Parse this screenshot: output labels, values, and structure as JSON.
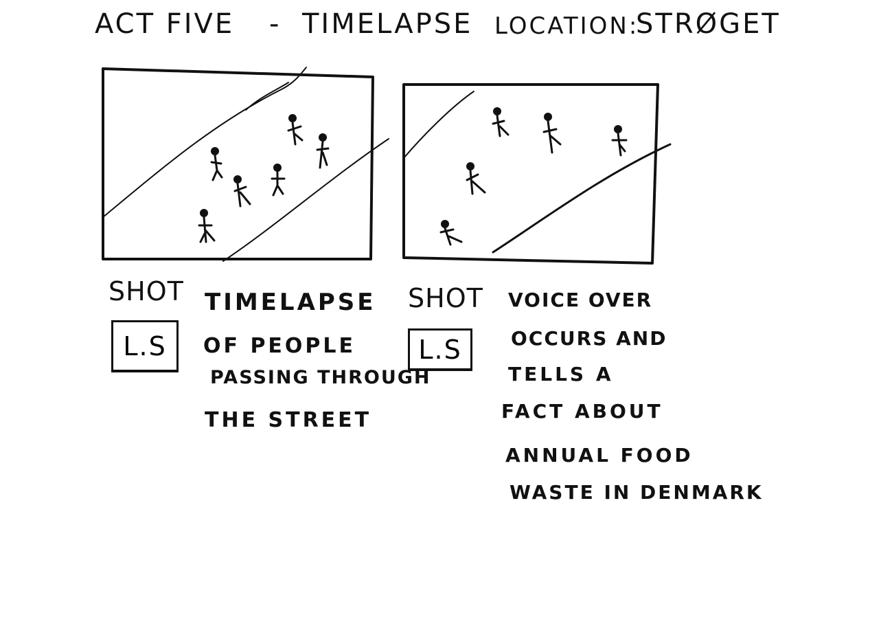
{
  "header": {
    "act": "ACT FIVE",
    "dash": "-",
    "subtitle": "TIMELAPSE",
    "location_label": "LOCATION:",
    "location_value": "STRØGET"
  },
  "panels": [
    {
      "shot_label": "SHOT",
      "shot_type": "L.S",
      "description": [
        "TIMELAPSE",
        "OF PEOPLE",
        "PASSING THROUGH",
        "THE STREET"
      ]
    },
    {
      "shot_label": "SHOT",
      "shot_type": "L.S",
      "description": [
        "VOICE OVER",
        "OCCURS AND",
        "TELLS A",
        "FACT ABOUT",
        "ANNUAL FOOD",
        "WASTE IN DENMARK"
      ]
    }
  ],
  "icons": {
    "figure": "stick-figure-icon"
  }
}
